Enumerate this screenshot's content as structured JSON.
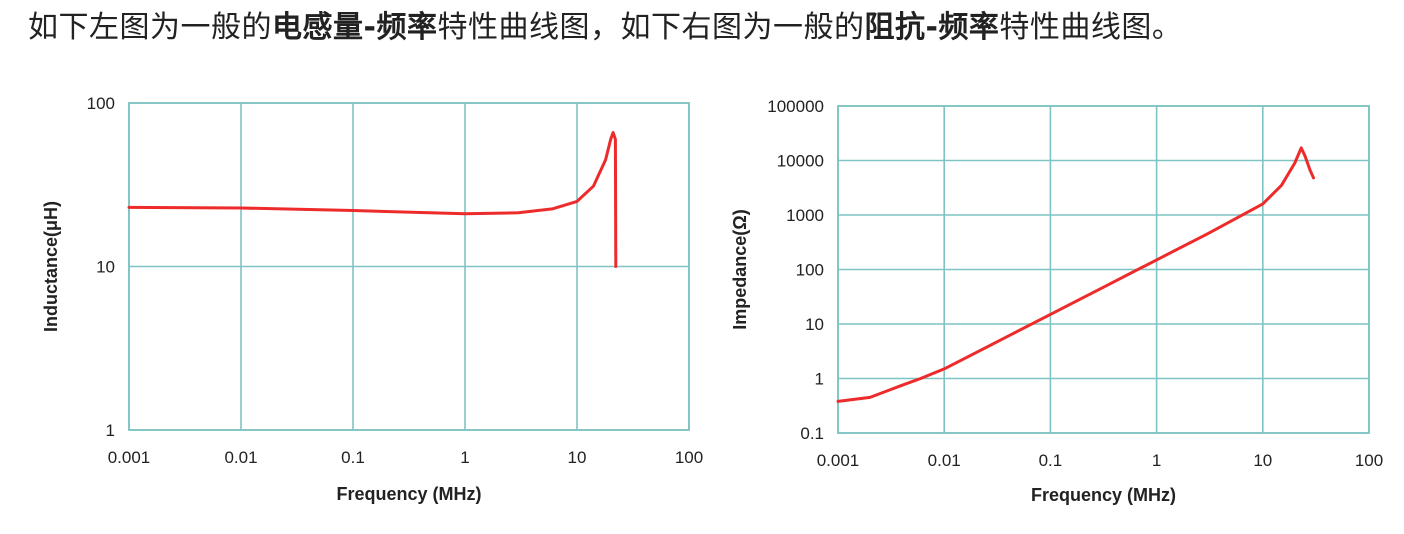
{
  "caption": {
    "p1": "如下左图为一般的",
    "b1": "电感量-频率",
    "p2": "特性曲线图，如下右图为一般的",
    "b2": "阻抗-频率",
    "p3": "特性曲线图。"
  },
  "colors": {
    "grid": "#7fc3c3",
    "curve": "#ee2b2b"
  },
  "chart_data": [
    {
      "type": "line",
      "xscale": "log",
      "yscale": "log",
      "xlabel": "Frequency (MHz)",
      "ylabel": "Inductance(μH)",
      "xlim": [
        0.001,
        100
      ],
      "ylim": [
        1,
        100
      ],
      "xticks": [
        "0.001",
        "0.01",
        "0.1",
        "1",
        "10",
        "100"
      ],
      "yticks": [
        "1",
        "10",
        "100"
      ],
      "grid": true,
      "series": [
        {
          "x": [
            0.001,
            0.01,
            0.1,
            1,
            3,
            6,
            10,
            14,
            18,
            20,
            21,
            22,
            22.2
          ],
          "y": [
            23,
            22.8,
            22,
            21,
            21.3,
            22.5,
            25,
            31,
            45,
            60,
            66,
            60,
            10
          ]
        }
      ]
    },
    {
      "type": "line",
      "xscale": "log",
      "yscale": "log",
      "xlabel": "Frequency (MHz)",
      "ylabel": "Impedance(Ω)",
      "xlim": [
        0.001,
        100
      ],
      "ylim": [
        0.1,
        100000
      ],
      "xticks": [
        "0.001",
        "0.01",
        "0.1",
        "1",
        "10",
        "100"
      ],
      "yticks": [
        "0.1",
        "1",
        "10",
        "100",
        "1000",
        "10000",
        "100000"
      ],
      "grid": true,
      "series": [
        {
          "x": [
            0.001,
            0.002,
            0.004,
            0.006,
            0.01,
            0.03,
            0.1,
            0.3,
            1,
            3,
            10,
            15,
            20,
            23,
            25,
            28,
            30
          ],
          "y": [
            0.38,
            0.45,
            0.75,
            1.0,
            1.5,
            4.5,
            15,
            45,
            150,
            450,
            1600,
            3500,
            9000,
            17000,
            12000,
            6500,
            4800
          ]
        }
      ]
    }
  ]
}
